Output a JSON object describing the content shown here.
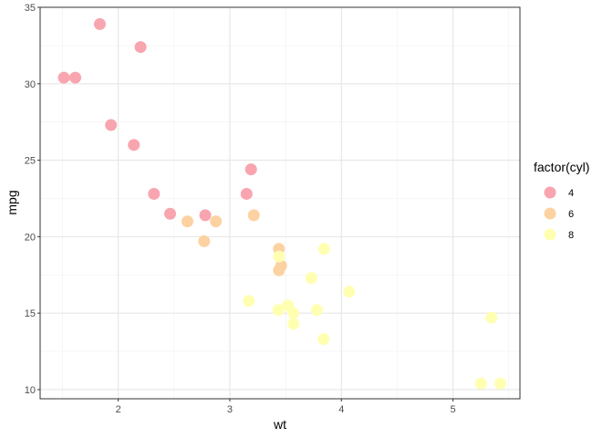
{
  "chart_data": {
    "type": "scatter",
    "xlabel": "wt",
    "ylabel": "mpg",
    "xlim": [
      1.3,
      5.6
    ],
    "ylim": [
      9.4,
      35.0
    ],
    "x_ticks": [
      2,
      3,
      4,
      5
    ],
    "y_ticks": [
      10,
      15,
      20,
      25,
      30,
      35
    ],
    "grid": true,
    "legend": {
      "title": "factor(cyl)",
      "placement": "right"
    },
    "series": [
      {
        "name": "4",
        "color": "#f8a5af",
        "points": [
          {
            "x": 2.32,
            "y": 22.8
          },
          {
            "x": 3.19,
            "y": 24.4
          },
          {
            "x": 3.15,
            "y": 22.8
          },
          {
            "x": 2.2,
            "y": 32.4
          },
          {
            "x": 1.615,
            "y": 30.4
          },
          {
            "x": 1.835,
            "y": 33.9
          },
          {
            "x": 2.465,
            "y": 21.5
          },
          {
            "x": 1.935,
            "y": 27.3
          },
          {
            "x": 2.14,
            "y": 26.0
          },
          {
            "x": 1.513,
            "y": 30.4
          },
          {
            "x": 2.78,
            "y": 21.4
          }
        ]
      },
      {
        "name": "6",
        "color": "#fdd2a2",
        "points": [
          {
            "x": 2.62,
            "y": 21.0
          },
          {
            "x": 2.875,
            "y": 21.0
          },
          {
            "x": 3.215,
            "y": 21.4
          },
          {
            "x": 3.46,
            "y": 18.1
          },
          {
            "x": 3.44,
            "y": 19.2
          },
          {
            "x": 3.44,
            "y": 17.8
          },
          {
            "x": 2.77,
            "y": 19.7
          }
        ]
      },
      {
        "name": "8",
        "color": "#ffffb2",
        "points": [
          {
            "x": 3.44,
            "y": 18.7
          },
          {
            "x": 3.57,
            "y": 14.3
          },
          {
            "x": 4.07,
            "y": 16.4
          },
          {
            "x": 3.73,
            "y": 17.3
          },
          {
            "x": 3.78,
            "y": 15.2
          },
          {
            "x": 5.25,
            "y": 10.4
          },
          {
            "x": 5.424,
            "y": 10.4
          },
          {
            "x": 5.345,
            "y": 14.7
          },
          {
            "x": 3.52,
            "y": 15.5
          },
          {
            "x": 3.435,
            "y": 15.2
          },
          {
            "x": 3.84,
            "y": 13.3
          },
          {
            "x": 3.845,
            "y": 19.2
          },
          {
            "x": 3.17,
            "y": 15.8
          },
          {
            "x": 3.57,
            "y": 15.0
          }
        ]
      }
    ]
  }
}
